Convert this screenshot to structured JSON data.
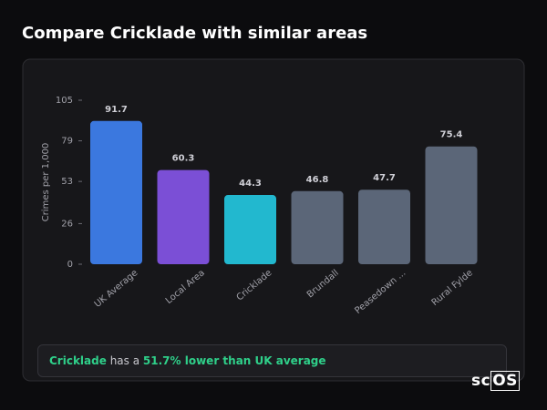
{
  "chart_data": {
    "type": "bar",
    "title": "Compare Cricklade with similar areas",
    "y_label": "Crimes per 1,000",
    "categories": [
      "UK Average",
      "Local Area",
      "Cricklade",
      "Brundall",
      "Peasedown ...",
      "Rural Fylde"
    ],
    "values": [
      91.7,
      60.3,
      44.3,
      46.8,
      47.7,
      75.4
    ],
    "colors": [
      "#3b78df",
      "#7b4fd6",
      "#22b8cf",
      "#5b6678",
      "#5b6678",
      "#5b6678"
    ],
    "ylim": [
      0,
      105
    ],
    "yticks": [
      0,
      26,
      53,
      79,
      105
    ],
    "grid": false
  },
  "summary": {
    "area": "Cricklade",
    "text": "has a",
    "highlight": "51.7% lower than UK average"
  },
  "logo": {
    "prefix": "sc",
    "box": "OS"
  }
}
